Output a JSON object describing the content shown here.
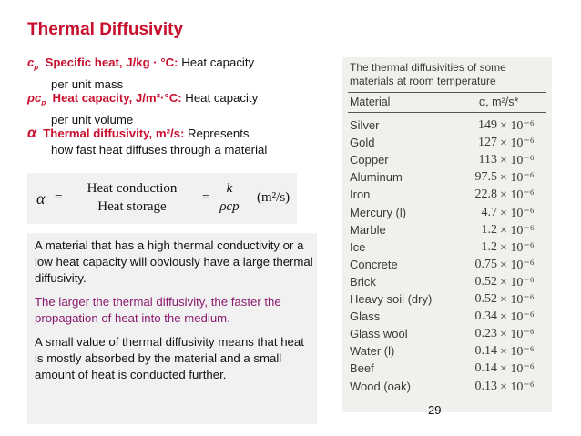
{
  "slide": {
    "title": "Thermal Diffusivity",
    "definitions": [
      {
        "symbol": "c",
        "sub": "p",
        "head": "Specific heat, J/kg · °C:",
        "text": "Heat capacity",
        "cont": "per unit mass"
      },
      {
        "symbol": "ρc",
        "sub": "p",
        "head": "Heat capacity, J/m³·°C:",
        "text": "Heat capacity",
        "cont": "per unit volume"
      },
      {
        "symbol": "α",
        "sub": "",
        "head": "Thermal diffusivity, m²/s:",
        "text": "Represents",
        "cont": "how fast heat diffuses through a material"
      }
    ],
    "formula": {
      "lhs": "α",
      "eq": "=",
      "num1": "Heat conduction",
      "den1": "Heat storage",
      "num2": "k",
      "den2": "ρcp",
      "units": "(m²/s)"
    },
    "paragraphs": [
      "A material that has a high thermal conductivity or a low heat capacity will obviously have a large thermal diffusivity.",
      "The larger the thermal diffusivity, the faster the propagation of heat into the medium.",
      "A small value of thermal diffusivity means that heat is mostly absorbed by the material and a small amount of heat is conducted further."
    ],
    "page_number": "29"
  },
  "table": {
    "caption": "The thermal diffusivities of some materials at room temperature",
    "col_material": "Material",
    "col_alpha": "α, m²/s*",
    "exponent": "× 10⁻⁶",
    "rows": [
      {
        "material": "Silver",
        "value": "149"
      },
      {
        "material": "Gold",
        "value": "127"
      },
      {
        "material": "Copper",
        "value": "113"
      },
      {
        "material": "Aluminum",
        "value": "97.5"
      },
      {
        "material": "Iron",
        "value": "22.8"
      },
      {
        "material": "Mercury (l)",
        "value": "4.7"
      },
      {
        "material": "Marble",
        "value": "1.2"
      },
      {
        "material": "Ice",
        "value": "1.2"
      },
      {
        "material": "Concrete",
        "value": "0.75"
      },
      {
        "material": "Brick",
        "value": "0.52"
      },
      {
        "material": "Heavy soil (dry)",
        "value": "0.52"
      },
      {
        "material": "Glass",
        "value": "0.34"
      },
      {
        "material": "Glass wool",
        "value": "0.23"
      },
      {
        "material": "Water (l)",
        "value": "0.14"
      },
      {
        "material": "Beef",
        "value": "0.14"
      },
      {
        "material": "Wood (oak)",
        "value": "0.13"
      }
    ]
  }
}
